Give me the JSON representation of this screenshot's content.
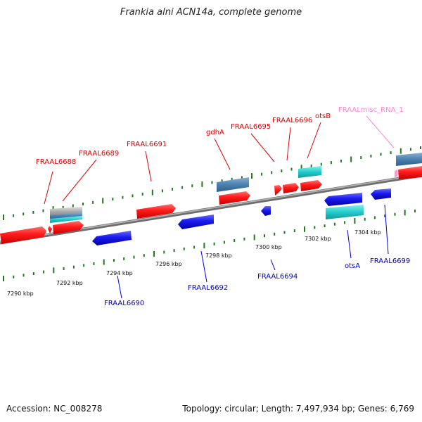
{
  "title": "Frankia alni ACN14a, complete genome",
  "footer": {
    "accession": "Accession: NC_008278",
    "summary": "Topology: circular; Length: 7,497,934 bp; Genes: 6,769"
  },
  "colors": {
    "forward_gene": "#ff1a1a",
    "reverse_gene": "#1a1aee",
    "cds_steel": "#4a80b0",
    "cds_cyan": "#22cccc",
    "misc_rna": "#ff99cc",
    "tick": "#1f7a1f",
    "backbone": "#888888"
  },
  "scale_labels": [
    "7290 kbp",
    "7292 kbp",
    "7294 kbp",
    "7296 kbp",
    "7298 kbp",
    "7300 kbp",
    "7302 kbp",
    "7304 kbp"
  ],
  "upper_labels": [
    {
      "text": "FRAAL6688",
      "color": "#dd0000"
    },
    {
      "text": "FRAAL6689",
      "color": "#dd0000"
    },
    {
      "text": "FRAAL6691",
      "color": "#dd0000"
    },
    {
      "text": "gdhA",
      "color": "#dd0000"
    },
    {
      "text": "FRAAL6695",
      "color": "#dd0000"
    },
    {
      "text": "FRAAL6696",
      "color": "#dd0000"
    },
    {
      "text": "otsB",
      "color": "#dd0000"
    },
    {
      "text": "FRAALmisc_RNA_1",
      "color": "#ff88cc"
    }
  ],
  "lower_labels": [
    {
      "text": "FRAAL6690",
      "color": "#0000cc"
    },
    {
      "text": "FRAAL6692",
      "color": "#0000cc"
    },
    {
      "text": "FRAAL6694",
      "color": "#0000cc"
    },
    {
      "text": "otsA",
      "color": "#0000cc"
    },
    {
      "text": "FRAAL6699",
      "color": "#0000cc"
    }
  ]
}
